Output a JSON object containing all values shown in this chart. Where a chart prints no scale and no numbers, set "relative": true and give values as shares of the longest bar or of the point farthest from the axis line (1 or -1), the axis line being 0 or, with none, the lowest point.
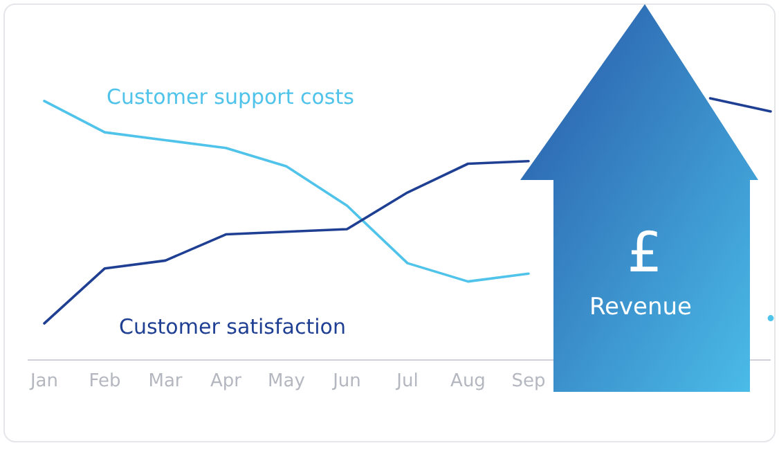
{
  "chart_data": {
    "type": "line",
    "relative": true,
    "categories": [
      "Jan",
      "Feb",
      "Mar",
      "Apr",
      "May",
      "Jun",
      "Jul",
      "Aug",
      "Sep",
      null,
      null,
      null,
      null
    ],
    "series": [
      {
        "name": "Customer support costs",
        "color": "#4fc3ea",
        "values": [
          0.99,
          0.87,
          0.84,
          0.81,
          0.74,
          0.59,
          0.37,
          0.3,
          0.33,
          null,
          null,
          null,
          0.16
        ]
      },
      {
        "name": "Customer satisfaction",
        "color": "#1f3f93",
        "values": [
          0.14,
          0.35,
          0.38,
          0.48,
          0.49,
          0.5,
          0.64,
          0.75,
          0.76,
          null,
          null,
          1,
          0.95
        ]
      }
    ],
    "annotations": [
      "£",
      "Revenue"
    ]
  }
}
